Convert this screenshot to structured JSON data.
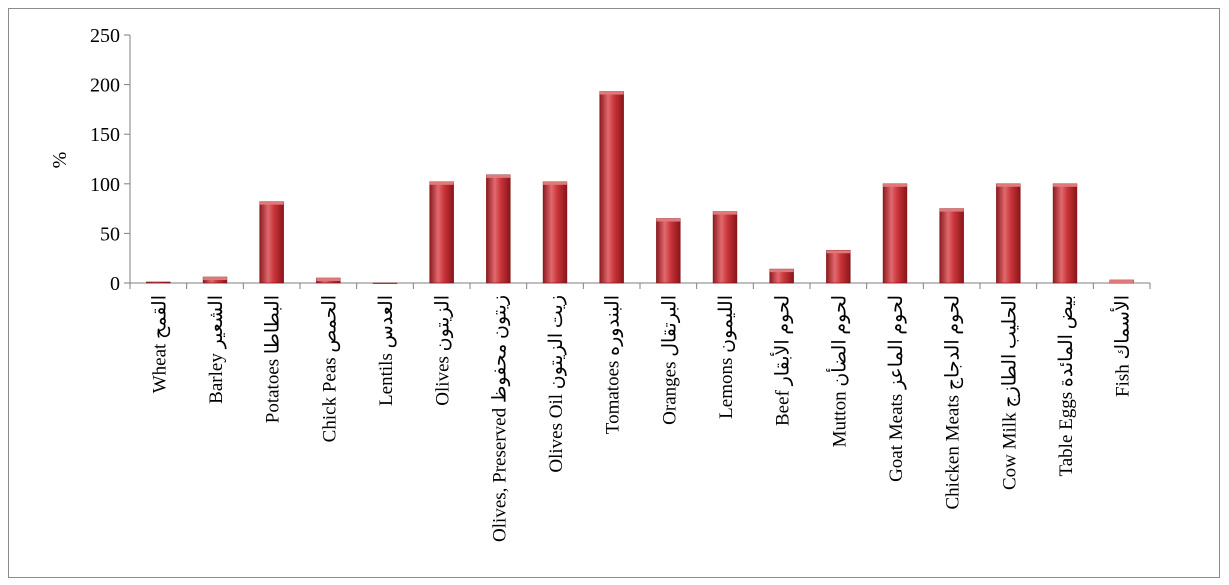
{
  "chart_data": {
    "type": "bar",
    "title": "",
    "xlabel": "",
    "ylabel": "%",
    "ylim": [
      0,
      250
    ],
    "yticks": [
      0,
      50,
      100,
      150,
      200,
      250
    ],
    "grid": false,
    "legend": "none",
    "bar_color": "#c0272d",
    "bar_highlight": "#e8656a",
    "categories": [
      {
        "en": "Wheat",
        "ar": "القمح"
      },
      {
        "en": "Barley",
        "ar": "الشعير"
      },
      {
        "en": "Potatoes",
        "ar": "البطاطا"
      },
      {
        "en": "Chick Peas",
        "ar": "الحمص"
      },
      {
        "en": "Lentils",
        "ar": "العدس"
      },
      {
        "en": "Olives",
        "ar": "الزيتون"
      },
      {
        "en": "Olives, Preserved",
        "ar": "زيتون محفوظ"
      },
      {
        "en": "Olives Oil",
        "ar": "زيت الزيتون"
      },
      {
        "en": "Tomatoes",
        "ar": "البندوره"
      },
      {
        "en": "Oranges",
        "ar": "البرتقال"
      },
      {
        "en": "Lemons",
        "ar": "الليمون"
      },
      {
        "en": "Beef",
        "ar": "لحوم الأبقار"
      },
      {
        "en": "Mutton",
        "ar": "لحوم الضأن"
      },
      {
        "en": "Goat Meats",
        "ar": "لحوم الماعز"
      },
      {
        "en": "Chicken Meats",
        "ar": "لحوم الدجاج"
      },
      {
        "en": "Cow Milk",
        "ar": "الحليب الطازج"
      },
      {
        "en": "Table Eggs",
        "ar": "بيض المائدة"
      },
      {
        "en": "Fish",
        "ar": "الأسماك"
      }
    ],
    "values": [
      1,
      6,
      82,
      5,
      0,
      102,
      109,
      102,
      193,
      65,
      72,
      14,
      33,
      100,
      75,
      100,
      100,
      3
    ]
  }
}
